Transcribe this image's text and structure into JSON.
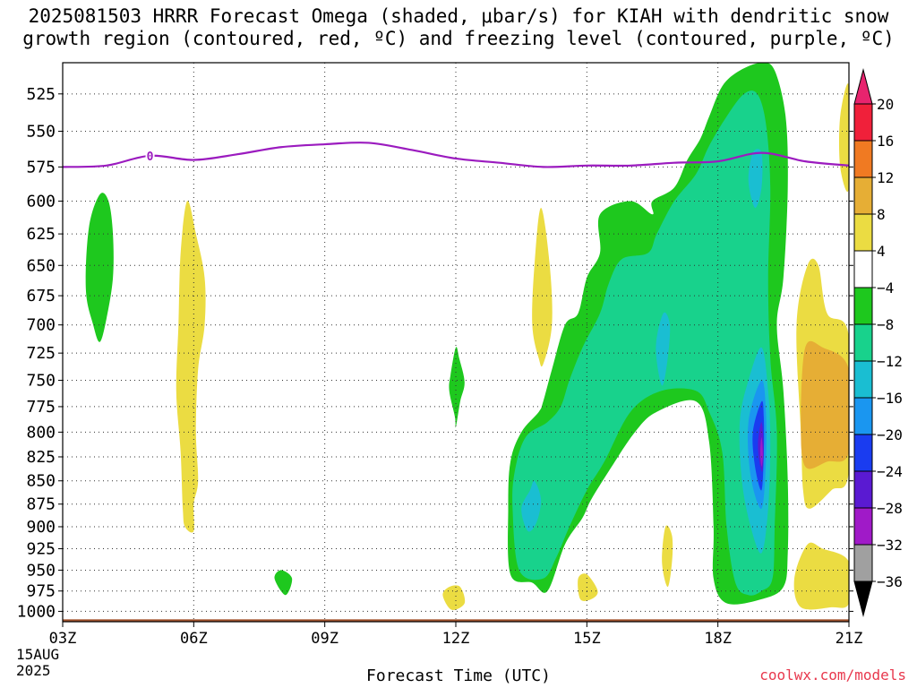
{
  "title": {
    "line1": "2025081503 HRRR Forecast Omega (shaded, μbar/s) for KIAH with dendritic snow",
    "line2": "growth region (contoured, red, ºC) and freezing level (contoured, purple, ºC)"
  },
  "credit": "coolwx.com/models",
  "chart_data": {
    "type": "heatmap",
    "title": "2025081503 HRRR Forecast Omega (shaded, μbar/s) for KIAH with dendritic snow growth region (contoured, red, ºC) and freezing level (contoured, purple, ºC)",
    "xlabel": "Forecast Time (UTC)",
    "ylabel": "",
    "x_ticks": [
      "03Z",
      "06Z",
      "09Z",
      "12Z",
      "15Z",
      "18Z",
      "21Z"
    ],
    "x_tick_hours": [
      3,
      6,
      9,
      12,
      15,
      18,
      21
    ],
    "x_start_labels": [
      "15AUG",
      "2025"
    ],
    "xlim": [
      3,
      21
    ],
    "y_ticks": [
      525,
      550,
      575,
      600,
      625,
      650,
      675,
      700,
      725,
      750,
      775,
      800,
      825,
      850,
      875,
      900,
      925,
      950,
      975,
      1000
    ],
    "ylim": [
      1013,
      505
    ],
    "y_scale": "log",
    "grid": true,
    "colorbar": {
      "levels": [
        20,
        16,
        12,
        8,
        4,
        -4,
        -8,
        -12,
        -16,
        -20,
        -24,
        -28,
        -32,
        -36
      ],
      "colors": [
        "#e8246e",
        "#f0203a",
        "#f07a22",
        "#e6ae35",
        "#ebdc42",
        "#ffffff",
        "#1ec81e",
        "#18d28c",
        "#1abed2",
        "#1a96f0",
        "#1a3cf0",
        "#5a1ad2",
        "#a01ac8",
        "#a0a0a0",
        "#000000"
      ]
    },
    "freezing_level": {
      "label": "0",
      "color": "#9b1bbf",
      "points": [
        [
          3,
          575
        ],
        [
          4,
          574
        ],
        [
          5,
          567
        ],
        [
          6,
          570
        ],
        [
          7,
          566
        ],
        [
          8,
          561
        ],
        [
          9,
          559
        ],
        [
          10,
          558
        ],
        [
          11,
          563
        ],
        [
          12,
          569
        ],
        [
          13,
          572
        ],
        [
          14,
          575
        ],
        [
          15,
          574
        ],
        [
          16,
          574
        ],
        [
          17,
          572
        ],
        [
          18,
          571
        ],
        [
          19,
          565
        ],
        [
          20,
          571
        ],
        [
          21,
          574
        ]
      ]
    },
    "omega_regions": [
      {
        "level": "-4",
        "color": "#1ec81e",
        "points": [
          [
            3.85,
            595
          ],
          [
            3.6,
            620
          ],
          [
            3.53,
            670
          ],
          [
            3.7,
            700
          ],
          [
            3.85,
            715
          ],
          [
            4.0,
            695
          ],
          [
            4.15,
            660
          ],
          [
            4.15,
            625
          ],
          [
            4.05,
            600
          ]
        ]
      },
      {
        "level": "-4",
        "color": "#1ec81e",
        "points": [
          [
            12.0,
            720
          ],
          [
            11.88,
            745
          ],
          [
            11.85,
            760
          ],
          [
            11.98,
            785
          ],
          [
            12.0,
            795
          ],
          [
            12.1,
            770
          ],
          [
            12.2,
            752
          ],
          [
            12.08,
            730
          ]
        ]
      },
      {
        "level": "-4",
        "color": "#1ec81e",
        "points": [
          [
            8.0,
            950
          ],
          [
            7.85,
            960
          ],
          [
            8.1,
            980
          ],
          [
            8.25,
            960
          ]
        ]
      },
      {
        "level": "-4",
        "color": "#1ec81e",
        "points": [
          [
            13.75,
            965
          ],
          [
            13.25,
            955
          ],
          [
            13.2,
            880
          ],
          [
            13.25,
            830
          ],
          [
            13.5,
            800
          ],
          [
            13.9,
            780
          ],
          [
            14.0,
            770
          ],
          [
            14.2,
            740
          ],
          [
            14.5,
            700
          ],
          [
            14.8,
            690
          ],
          [
            15.0,
            660
          ],
          [
            15.3,
            640
          ],
          [
            15.3,
            610
          ],
          [
            16.0,
            600
          ],
          [
            16.5,
            610
          ],
          [
            16.5,
            600
          ],
          [
            17.0,
            590
          ],
          [
            17.3,
            570
          ],
          [
            17.6,
            555
          ],
          [
            17.8,
            540
          ],
          [
            18.1,
            520
          ],
          [
            18.5,
            510
          ],
          [
            19.0,
            505
          ],
          [
            19.3,
            510
          ],
          [
            19.55,
            540
          ],
          [
            19.6,
            590
          ],
          [
            19.5,
            660
          ],
          [
            19.35,
            700
          ],
          [
            19.5,
            760
          ],
          [
            19.6,
            850
          ],
          [
            19.6,
            930
          ],
          [
            19.5,
            970
          ],
          [
            19.0,
            985
          ],
          [
            18.2,
            990
          ],
          [
            17.9,
            960
          ],
          [
            17.9,
            900
          ],
          [
            17.8,
            810
          ],
          [
            17.5,
            770
          ],
          [
            16.6,
            780
          ],
          [
            16.1,
            800
          ],
          [
            15.5,
            840
          ],
          [
            15.1,
            870
          ],
          [
            14.9,
            890
          ],
          [
            14.5,
            920
          ],
          [
            14.1,
            975
          ]
        ]
      },
      {
        "level": "-8",
        "color": "#18d28c",
        "points": [
          [
            14.0,
            960
          ],
          [
            13.45,
            950
          ],
          [
            13.3,
            880
          ],
          [
            13.35,
            840
          ],
          [
            13.6,
            805
          ],
          [
            14.1,
            790
          ],
          [
            14.4,
            775
          ],
          [
            14.6,
            750
          ],
          [
            14.9,
            720
          ],
          [
            15.3,
            690
          ],
          [
            15.5,
            665
          ],
          [
            15.8,
            645
          ],
          [
            16.4,
            640
          ],
          [
            16.6,
            625
          ],
          [
            17.0,
            600
          ],
          [
            17.5,
            580
          ],
          [
            17.8,
            560
          ],
          [
            18.2,
            540
          ],
          [
            18.6,
            525
          ],
          [
            18.9,
            525
          ],
          [
            19.1,
            545
          ],
          [
            19.2,
            590
          ],
          [
            19.15,
            660
          ],
          [
            19.2,
            730
          ],
          [
            19.35,
            800
          ],
          [
            19.3,
            900
          ],
          [
            19.25,
            960
          ],
          [
            19.0,
            975
          ],
          [
            18.7,
            980
          ],
          [
            18.4,
            965
          ],
          [
            18.2,
            900
          ],
          [
            18.1,
            820
          ],
          [
            17.8,
            780
          ],
          [
            17.5,
            760
          ],
          [
            16.7,
            760
          ],
          [
            16.0,
            780
          ],
          [
            15.4,
            830
          ],
          [
            15.0,
            860
          ],
          [
            14.6,
            900
          ],
          [
            14.3,
            935
          ]
        ]
      },
      {
        "level": "-12",
        "color": "#1abed2",
        "points": [
          [
            13.7,
            860
          ],
          [
            13.5,
            880
          ],
          [
            13.65,
            905
          ],
          [
            13.85,
            895
          ],
          [
            13.95,
            870
          ],
          [
            13.8,
            850
          ]
        ]
      },
      {
        "level": "-12",
        "color": "#1abed2",
        "points": [
          [
            16.75,
            690
          ],
          [
            16.58,
            720
          ],
          [
            16.72,
            755
          ],
          [
            16.85,
            730
          ],
          [
            16.9,
            700
          ]
        ]
      },
      {
        "level": "-12",
        "color": "#1abed2",
        "points": [
          [
            18.8,
            565
          ],
          [
            18.7,
            585
          ],
          [
            18.85,
            605
          ],
          [
            19.0,
            590
          ],
          [
            19.0,
            565
          ]
        ]
      },
      {
        "level": "-12",
        "color": "#1abed2",
        "points": [
          [
            19.0,
            720
          ],
          [
            18.7,
            750
          ],
          [
            18.5,
            790
          ],
          [
            18.55,
            850
          ],
          [
            18.75,
            900
          ],
          [
            19.0,
            930
          ],
          [
            19.15,
            880
          ],
          [
            19.2,
            810
          ],
          [
            19.15,
            760
          ]
        ]
      },
      {
        "level": "-16",
        "color": "#1a96f0",
        "points": [
          [
            19.0,
            750
          ],
          [
            18.7,
            790
          ],
          [
            18.75,
            845
          ],
          [
            19.0,
            880
          ],
          [
            19.1,
            830
          ],
          [
            19.1,
            780
          ]
        ]
      },
      {
        "level": "-20",
        "color": "#1a3cf0",
        "points": [
          [
            19.0,
            770
          ],
          [
            18.8,
            800
          ],
          [
            18.85,
            835
          ],
          [
            19.0,
            860
          ],
          [
            19.05,
            820
          ],
          [
            19.05,
            785
          ]
        ]
      },
      {
        "level": "-24",
        "color": "#5a1ad2",
        "points": [
          [
            19.0,
            790
          ],
          [
            18.92,
            810
          ],
          [
            18.95,
            830
          ],
          [
            19.02,
            840
          ],
          [
            19.05,
            815
          ]
        ]
      },
      {
        "level": "-28",
        "color": "#a01ac8",
        "points": [
          [
            19.0,
            805
          ],
          [
            18.97,
            820
          ],
          [
            19.0,
            835
          ],
          [
            19.03,
            822
          ]
        ]
      },
      {
        "level": "4",
        "color": "#ebdc42",
        "points": [
          [
            5.8,
            900
          ],
          [
            5.75,
            880
          ],
          [
            5.7,
            820
          ],
          [
            5.6,
            760
          ],
          [
            5.65,
            700
          ],
          [
            5.7,
            640
          ],
          [
            5.85,
            600
          ],
          [
            6.05,
            625
          ],
          [
            6.25,
            660
          ],
          [
            6.25,
            700
          ],
          [
            6.1,
            740
          ],
          [
            6.05,
            800
          ],
          [
            6.1,
            850
          ],
          [
            6.0,
            875
          ],
          [
            6.0,
            905
          ]
        ]
      },
      {
        "level": "4",
        "color": "#ebdc42",
        "points": [
          [
            13.9,
            730
          ],
          [
            13.75,
            700
          ],
          [
            13.8,
            650
          ],
          [
            13.95,
            605
          ],
          [
            14.15,
            650
          ],
          [
            14.2,
            700
          ],
          [
            14.0,
            735
          ]
        ]
      },
      {
        "level": "4",
        "color": "#ebdc42",
        "points": [
          [
            11.85,
            970
          ],
          [
            11.7,
            980
          ],
          [
            11.9,
            998
          ],
          [
            12.2,
            990
          ],
          [
            12.1,
            970
          ]
        ]
      },
      {
        "level": "4",
        "color": "#ebdc42",
        "points": [
          [
            14.8,
            960
          ],
          [
            14.85,
            985
          ],
          [
            15.1,
            985
          ],
          [
            15.25,
            975
          ],
          [
            15.0,
            955
          ]
        ]
      },
      {
        "level": "4",
        "color": "#ebdc42",
        "points": [
          [
            16.8,
            900
          ],
          [
            16.72,
            940
          ],
          [
            16.85,
            970
          ],
          [
            16.95,
            940
          ],
          [
            16.95,
            910
          ]
        ]
      },
      {
        "level": "4",
        "color": "#ebdc42",
        "points": [
          [
            20.8,
            540
          ],
          [
            20.8,
            575
          ],
          [
            21,
            590
          ],
          [
            21,
            520
          ]
        ]
      },
      {
        "level": "4",
        "color": "#ebdc42",
        "points": [
          [
            20.05,
            650
          ],
          [
            19.8,
            700
          ],
          [
            19.9,
            800
          ],
          [
            19.95,
            860
          ],
          [
            20.1,
            880
          ],
          [
            20.6,
            860
          ],
          [
            21,
            840
          ],
          [
            21,
            710
          ],
          [
            20.5,
            690
          ],
          [
            20.3,
            650
          ]
        ]
      },
      {
        "level": "4",
        "color": "#ebdc42",
        "points": [
          [
            20.05,
            920
          ],
          [
            19.75,
            960
          ],
          [
            19.9,
            995
          ],
          [
            20.6,
            995
          ],
          [
            21,
            990
          ],
          [
            21,
            940
          ],
          [
            20.4,
            925
          ]
        ]
      },
      {
        "level": "8",
        "color": "#e6ae35",
        "points": [
          [
            20.0,
            720
          ],
          [
            19.9,
            790
          ],
          [
            20.0,
            835
          ],
          [
            20.5,
            830
          ],
          [
            21,
            820
          ],
          [
            21,
            740
          ],
          [
            20.4,
            720
          ]
        ]
      }
    ],
    "terrain": {
      "color": "#a0522d",
      "top_hpa": 1010
    }
  }
}
